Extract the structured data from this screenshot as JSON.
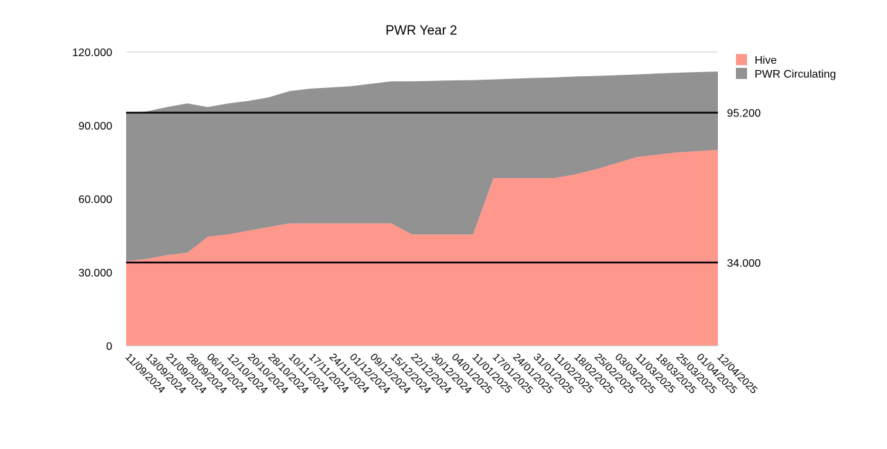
{
  "chart_data": {
    "type": "area",
    "title": "PWR Year 2",
    "xlabel": "",
    "ylabel": "",
    "stacked": true,
    "ylim": [
      0,
      120000
    ],
    "yticks": [
      0,
      30000,
      60000,
      90000,
      120000
    ],
    "ytick_labels": [
      "0",
      "30.000",
      "60.000",
      "90.000",
      "120.000"
    ],
    "grid": "horizontal, top line only",
    "legend_position": "right",
    "categories": [
      "11/09/2024",
      "13/09/2024",
      "21/09/2024",
      "28/09/2024",
      "06/10/2024",
      "12/10/2024",
      "20/10/2024",
      "28/10/2024",
      "10/11/2024",
      "17/11/2024",
      "24/11/2024",
      "01/12/2024",
      "09/12/2024",
      "15/12/2024",
      "22/12/2024",
      "30/12/2024",
      "04/01/2025",
      "11/01/2025",
      "17/01/2025",
      "24/01/2025",
      "31/01/2025",
      "11/02/2025",
      "18/02/2025",
      "25/02/2025",
      "03/03/2025",
      "11/03/2025",
      "18/03/2025",
      "25/03/2025",
      "01/04/2025",
      "12/04/2025"
    ],
    "series": [
      {
        "name": "Hive",
        "color": "#ff988c",
        "values": [
          34500,
          35500,
          37000,
          38000,
          44500,
          45500,
          47000,
          48500,
          50000,
          50000,
          50000,
          50000,
          50000,
          50000,
          45500,
          45500,
          45500,
          45500,
          68500,
          68500,
          68500,
          68500,
          70000,
          72000,
          74500,
          77000,
          78000,
          79000,
          79500,
          80000
        ]
      },
      {
        "name": "PWR Circulating",
        "color": "#929292",
        "values": [
          60700,
          60200,
          60500,
          61000,
          53000,
          53500,
          53000,
          53000,
          54000,
          55000,
          55500,
          56000,
          57000,
          58000,
          62500,
          62700,
          62900,
          63000,
          40300,
          40600,
          40900,
          41100,
          40000,
          38200,
          36000,
          33800,
          33200,
          32500,
          32300,
          32000
        ]
      }
    ],
    "reference_lines": [
      {
        "value": 95200,
        "label": "95.200",
        "color": "#000000"
      },
      {
        "value": 34000,
        "label": "34.000",
        "color": "#000000"
      }
    ]
  }
}
